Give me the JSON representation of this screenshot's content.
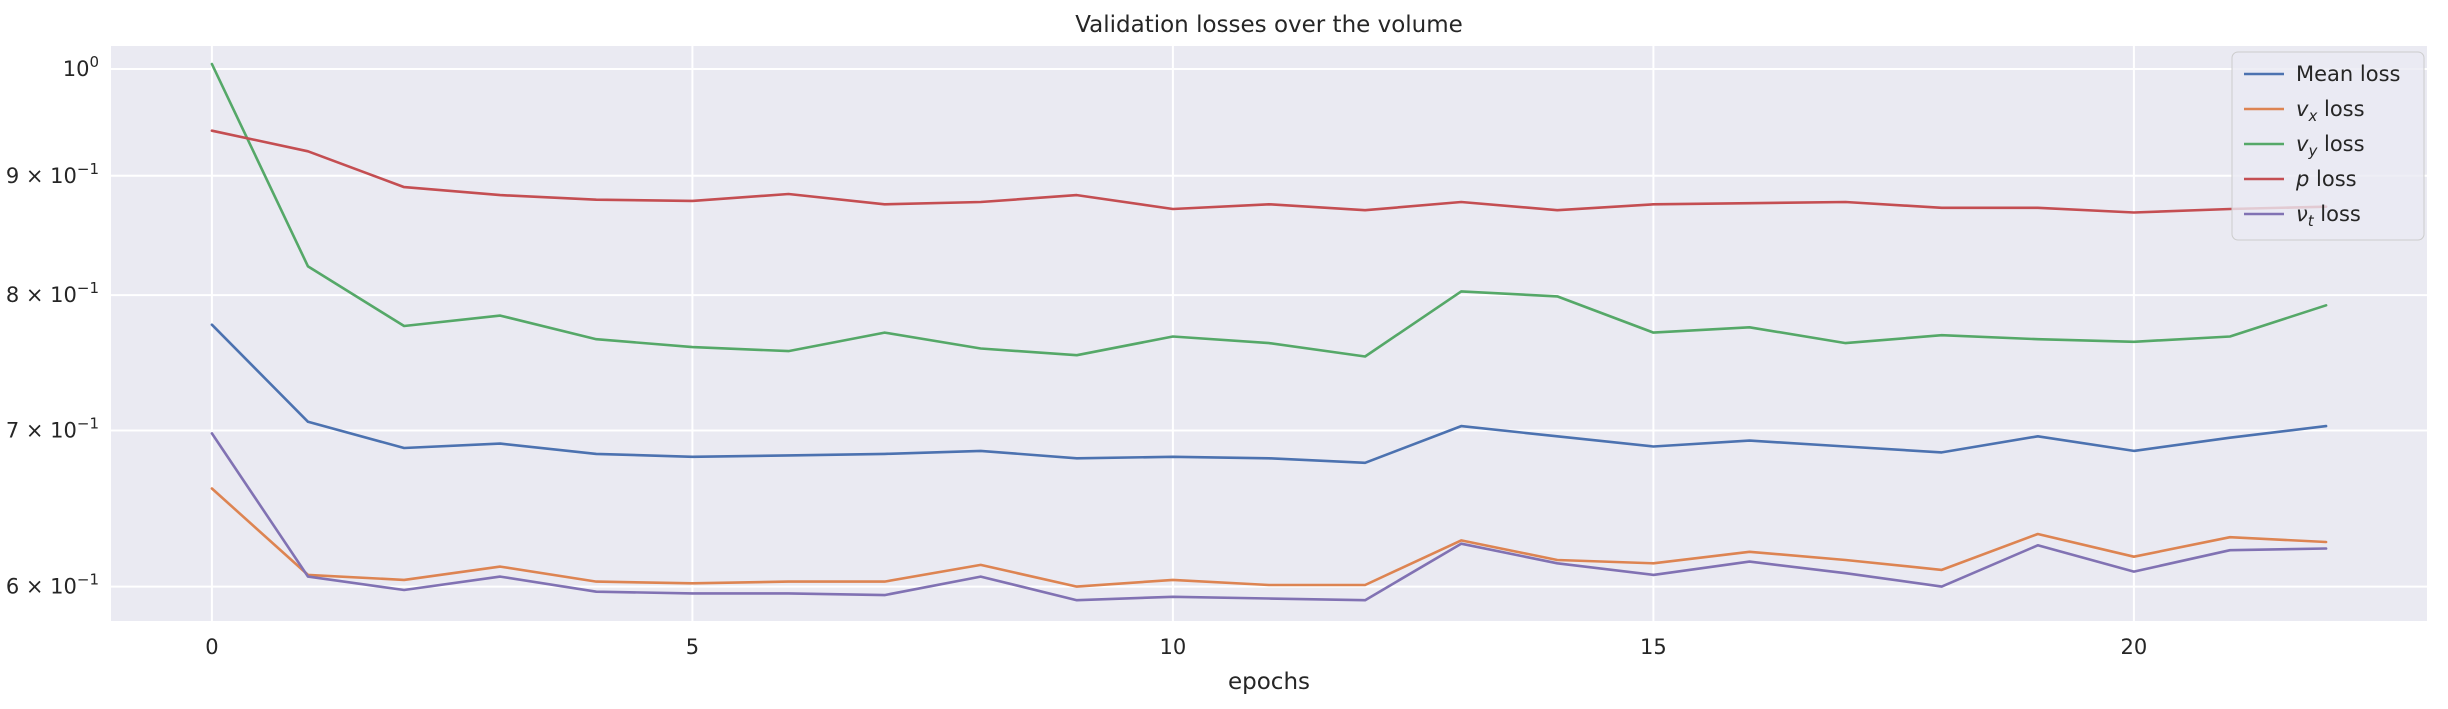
{
  "chart_data": {
    "type": "line",
    "title": "Validation losses over the volume",
    "xlabel": "epochs",
    "ylabel": "",
    "yscale": "log",
    "xlim": [
      -1.05,
      23.05
    ],
    "ylim": [
      0.58,
      1.023
    ],
    "grid": true,
    "legend_position": "top-right",
    "x_ticks": [
      0,
      5,
      10,
      15,
      20
    ],
    "y_ticks": [
      {
        "value": 1.0,
        "base": "10",
        "exp": "0"
      },
      {
        "value": 0.9,
        "base": "9 × 10",
        "exp": "−1"
      },
      {
        "value": 0.8,
        "base": "8 × 10",
        "exp": "−1"
      },
      {
        "value": 0.7,
        "base": "7 × 10",
        "exp": "−1"
      },
      {
        "value": 0.6,
        "base": "6 × 10",
        "exp": "−1"
      }
    ],
    "x": [
      0,
      1,
      2,
      3,
      4,
      5,
      6,
      7,
      8,
      9,
      10,
      11,
      12,
      13,
      14,
      15,
      16,
      17,
      18,
      19,
      20,
      21,
      22
    ],
    "series": [
      {
        "name": "Mean loss",
        "color": "#4c72b0",
        "values": [
          0.777,
          0.706,
          0.688,
          0.691,
          0.684,
          0.682,
          0.683,
          0.684,
          0.686,
          0.681,
          0.682,
          0.681,
          0.678,
          0.703,
          0.696,
          0.689,
          0.693,
          0.689,
          0.685,
          0.696,
          0.686,
          0.695,
          0.703
        ]
      },
      {
        "name": "v_x loss",
        "color": "#dd8452",
        "values": [
          0.661,
          0.607,
          0.604,
          0.612,
          0.603,
          0.602,
          0.603,
          0.603,
          0.613,
          0.6,
          0.604,
          0.601,
          0.601,
          0.628,
          0.616,
          0.614,
          0.621,
          0.616,
          0.61,
          0.632,
          0.618,
          0.63,
          0.627
        ]
      },
      {
        "name": "v_y loss",
        "color": "#55a868",
        "values": [
          1.005,
          0.823,
          0.776,
          0.784,
          0.766,
          0.76,
          0.757,
          0.771,
          0.759,
          0.754,
          0.768,
          0.763,
          0.753,
          0.803,
          0.799,
          0.771,
          0.775,
          0.763,
          0.769,
          0.766,
          0.764,
          0.768,
          0.792
        ]
      },
      {
        "name": "p loss",
        "color": "#c44e52",
        "values": [
          0.941,
          0.922,
          0.89,
          0.883,
          0.879,
          0.878,
          0.884,
          0.875,
          0.877,
          0.883,
          0.871,
          0.875,
          0.87,
          0.877,
          0.87,
          0.875,
          0.876,
          0.877,
          0.872,
          0.872,
          0.868,
          0.871,
          0.873
        ]
      },
      {
        "name": "ν_t loss",
        "color": "#8172b3",
        "values": [
          0.698,
          0.606,
          0.598,
          0.606,
          0.597,
          0.596,
          0.596,
          0.595,
          0.606,
          0.592,
          0.594,
          0.593,
          0.592,
          0.626,
          0.614,
          0.607,
          0.615,
          0.608,
          0.6,
          0.625,
          0.609,
          0.622,
          0.623
        ]
      }
    ],
    "legend": [
      {
        "main": "Mean loss",
        "sym": "",
        "sub": ""
      },
      {
        "main": " loss",
        "sym": "v",
        "sub": "x"
      },
      {
        "main": " loss",
        "sym": "v",
        "sub": "y"
      },
      {
        "main": " loss",
        "sym": "p",
        "sub": ""
      },
      {
        "main": " loss",
        "sym": "ν",
        "sub": "t"
      }
    ]
  },
  "colors": {
    "plot_background": "#eaeaf2",
    "grid": "#ffffff",
    "text": "#262626"
  }
}
